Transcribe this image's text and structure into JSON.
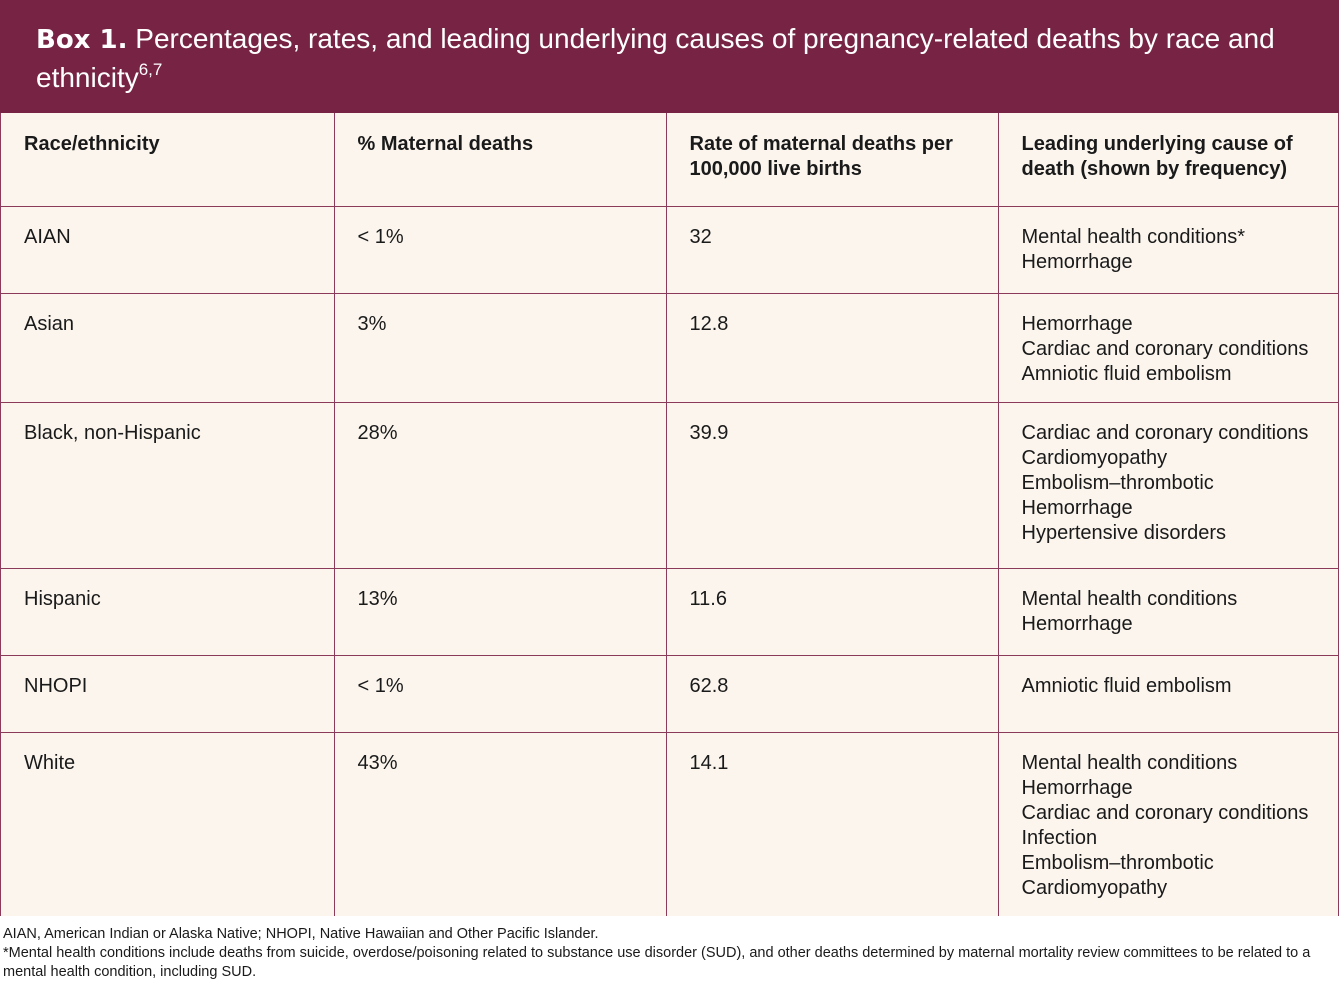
{
  "header": {
    "box_label": "Box 1.",
    "title": "Percentages, rates, and leading underlying causes of pregnancy-related deaths by race and ethnicity",
    "superscript": "6,7"
  },
  "table": {
    "columns": [
      "Race/ethnicity",
      "% Maternal deaths",
      "Rate of maternal deaths per 100,000 live births",
      "Leading underlying cause of death (shown by frequency)"
    ],
    "rows": [
      {
        "race": "AIAN",
        "percent": "< 1%",
        "rate": "32",
        "causes": [
          "Mental health conditions*",
          "Hemorrhage"
        ]
      },
      {
        "race": "Asian",
        "percent": "3%",
        "rate": "12.8",
        "causes": [
          "Hemorrhage",
          "Cardiac and coronary conditions",
          "Amniotic fluid embolism"
        ]
      },
      {
        "race": "Black, non-Hispanic",
        "percent": "28%",
        "rate": "39.9",
        "causes": [
          "Cardiac and coronary conditions",
          "Cardiomyopathy",
          "Embolism–thrombotic",
          "Hemorrhage",
          "Hypertensive disorders"
        ]
      },
      {
        "race": "Hispanic",
        "percent": "13%",
        "rate": "11.6",
        "causes": [
          "Mental health conditions",
          "Hemorrhage"
        ]
      },
      {
        "race": "NHOPI",
        "percent": "< 1%",
        "rate": "62.8",
        "causes": [
          "Amniotic fluid embolism"
        ]
      },
      {
        "race": "White",
        "percent": "43%",
        "rate": "14.1",
        "causes": [
          "Mental health conditions",
          "Hemorrhage",
          "Cardiac and coronary conditions",
          "Infection",
          "Embolism–thrombotic",
          "Cardiomyopathy"
        ]
      }
    ]
  },
  "footnotes": {
    "abbreviations": "AIAN, American Indian or Alaska Native; NHOPI, Native Hawaiian and Other Pacific Islander.",
    "asterisk_note": "*Mental health conditions include deaths from suicide, overdose/poisoning related to substance use disorder (SUD), and other deaths determined by maternal mortality review committees to be related to a mental health condition, including SUD."
  },
  "colors": {
    "header_bg": "#772444",
    "table_bg": "#fbf5ee",
    "border": "#8c3a5a"
  }
}
